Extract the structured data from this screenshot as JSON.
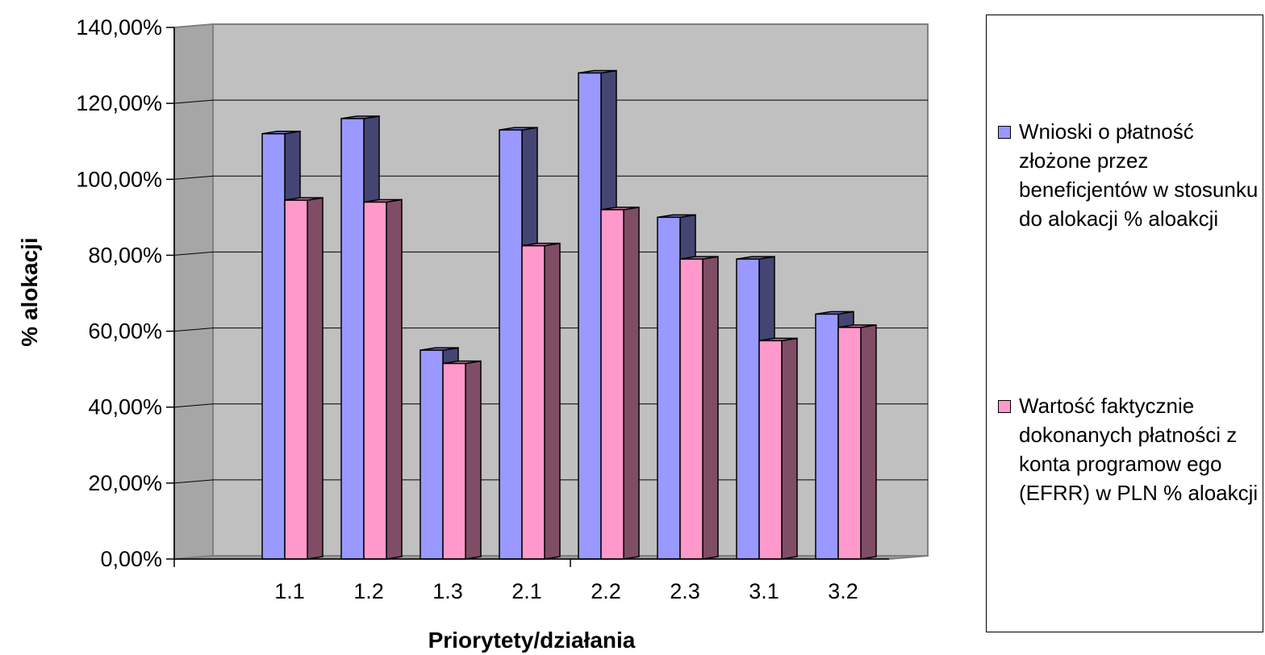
{
  "chart_data": {
    "type": "bar",
    "xlabel": "Priorytety/działania",
    "ylabel": "% alokacji",
    "ylim": [
      0,
      140
    ],
    "y_ticks": [
      "0,00%",
      "20,00%",
      "40,00%",
      "60,00%",
      "80,00%",
      "100,00%",
      "120,00%",
      "140,00%"
    ],
    "categories": [
      "1.1",
      "1.2",
      "1.3",
      "2.1",
      "2.2",
      "2.3",
      "3.1",
      "3.2"
    ],
    "grid": true,
    "legend_position": "right",
    "series": [
      {
        "name": "Wnioski o płatność złożone przez beneficjentów  w stosunku do alokacji % aloakcji",
        "values": [
          112,
          116,
          55,
          113,
          128,
          90,
          79,
          64.5
        ],
        "color": "#9999ff"
      },
      {
        "name": "Wartość  faktycznie dokonanych płatności z konta programow ego (EFRR) w  PLN % aloakcji",
        "values": [
          94.5,
          94,
          51.5,
          82.5,
          92,
          79,
          57.5,
          61
        ],
        "color": "#ff99cc"
      }
    ]
  }
}
